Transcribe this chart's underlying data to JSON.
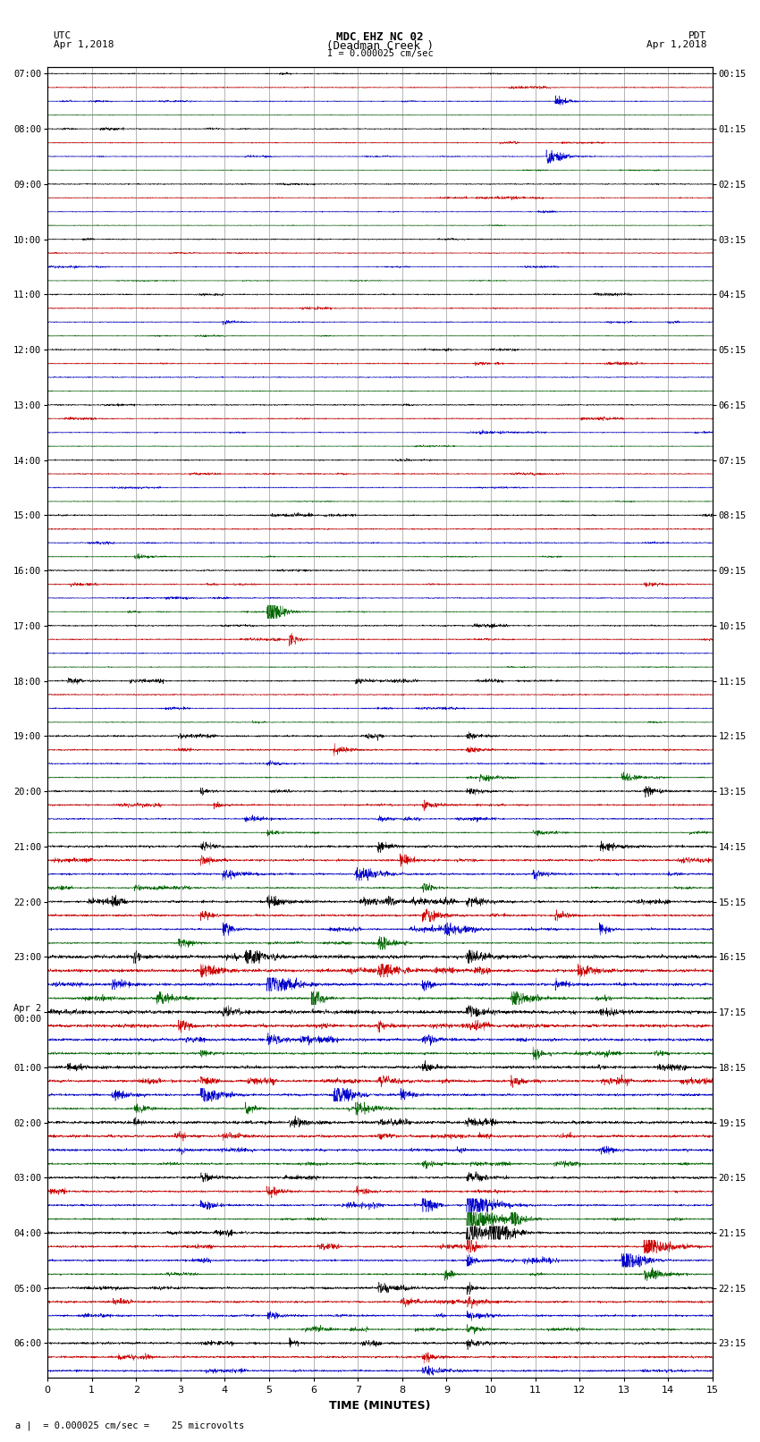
{
  "title_line1": "MDC EHZ NC 02",
  "title_line2": "(Deadman Creek )",
  "title_line3": "I = 0.000025 cm/sec",
  "left_label_top": "UTC",
  "left_label_date": "Apr 1,2018",
  "right_label_top": "PDT",
  "right_label_date": "Apr 1,2018",
  "xlabel": "TIME (MINUTES)",
  "scale_text": "= 0.000025 cm/sec =    25 microvolts",
  "xlim": [
    0,
    15
  ],
  "bg_color": "#ffffff",
  "grid_color": "#999999",
  "trace_colors": [
    "#000000",
    "#cc0000",
    "#0000cc",
    "#006600"
  ],
  "utc_times": [
    "07:00",
    "",
    "",
    "",
    "08:00",
    "",
    "",
    "",
    "09:00",
    "",
    "",
    "",
    "10:00",
    "",
    "",
    "",
    "11:00",
    "",
    "",
    "",
    "12:00",
    "",
    "",
    "",
    "13:00",
    "",
    "",
    "",
    "14:00",
    "",
    "",
    "",
    "15:00",
    "",
    "",
    "",
    "16:00",
    "",
    "",
    "",
    "17:00",
    "",
    "",
    "",
    "18:00",
    "",
    "",
    "",
    "19:00",
    "",
    "",
    "",
    "20:00",
    "",
    "",
    "",
    "21:00",
    "",
    "",
    "",
    "22:00",
    "",
    "",
    "",
    "23:00",
    "",
    "",
    "",
    "Apr 2\n00:00",
    "",
    "",
    "",
    "01:00",
    "",
    "",
    "",
    "02:00",
    "",
    "",
    "",
    "03:00",
    "",
    "",
    "",
    "04:00",
    "",
    "",
    "",
    "05:00",
    "",
    "",
    "",
    "06:00",
    "",
    ""
  ],
  "pdt_times": [
    "00:15",
    "",
    "",
    "",
    "01:15",
    "",
    "",
    "",
    "02:15",
    "",
    "",
    "",
    "03:15",
    "",
    "",
    "",
    "04:15",
    "",
    "",
    "",
    "05:15",
    "",
    "",
    "",
    "06:15",
    "",
    "",
    "",
    "07:15",
    "",
    "",
    "",
    "08:15",
    "",
    "",
    "",
    "09:15",
    "",
    "",
    "",
    "10:15",
    "",
    "",
    "",
    "11:15",
    "",
    "",
    "",
    "12:15",
    "",
    "",
    "",
    "13:15",
    "",
    "",
    "",
    "14:15",
    "",
    "",
    "",
    "15:15",
    "",
    "",
    "",
    "16:15",
    "",
    "",
    "",
    "17:15",
    "",
    "",
    "",
    "18:15",
    "",
    "",
    "",
    "19:15",
    "",
    "",
    "",
    "20:15",
    "",
    "",
    "",
    "21:15",
    "",
    "",
    "",
    "22:15",
    "",
    "",
    "",
    "23:15",
    "",
    ""
  ],
  "noise_seed": 12345
}
